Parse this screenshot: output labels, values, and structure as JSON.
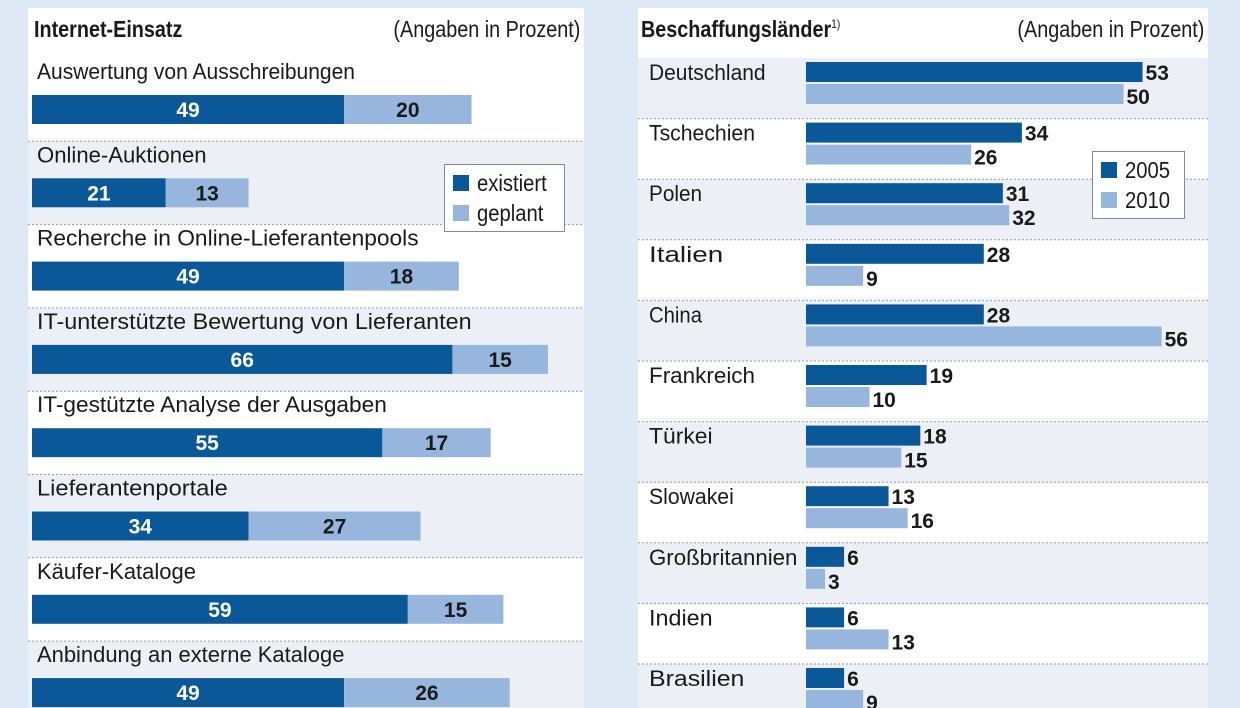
{
  "colors": {
    "existing": "#0a5897",
    "planned": "#97b6de",
    "band": "#ecf0f6",
    "background": "#dfe9f6"
  },
  "left": {
    "title": "Internet-Einsatz",
    "subtitle": "(Angaben in Prozent)",
    "legend": {
      "existing": "existiert",
      "planned": "geplant"
    }
  },
  "right": {
    "title": "Beschaffungsländer",
    "footnote": "1)",
    "subtitle": "(Angaben in Prozent)",
    "legend": {
      "s2005": "2005",
      "s2010": "2010"
    }
  },
  "chart_data": [
    {
      "type": "bar",
      "stacked": true,
      "orientation": "horizontal",
      "title": "Internet-Einsatz",
      "subtitle": "(Angaben in Prozent)",
      "categories": [
        "Auswertung von Ausschreibungen",
        "Online-Auktionen",
        "Recherche in Online-Lieferantenpools",
        "IT-unterstützte Bewertung von Lieferanten",
        "IT-gestützte Analyse der Ausgaben",
        "Lieferantenportale",
        "Käufer-Kataloge",
        "Anbindung an externe Kataloge"
      ],
      "series": [
        {
          "name": "existiert",
          "values": [
            49,
            21,
            49,
            66,
            55,
            34,
            59,
            49
          ]
        },
        {
          "name": "geplant",
          "values": [
            20,
            13,
            18,
            15,
            17,
            27,
            15,
            26
          ]
        }
      ],
      "legend_position": "right"
    },
    {
      "type": "bar",
      "orientation": "horizontal",
      "title": "Beschaffungsländer",
      "subtitle": "(Angaben in Prozent)",
      "categories": [
        "Deutschland",
        "Tschechien",
        "Polen",
        "Italien",
        "China",
        "Frankreich",
        "Türkei",
        "Slowakei",
        "Großbritannien",
        "Indien",
        "Brasilien"
      ],
      "series": [
        {
          "name": "2005",
          "values": [
            53,
            34,
            31,
            28,
            28,
            19,
            18,
            13,
            6,
            6,
            6
          ]
        },
        {
          "name": "2010",
          "values": [
            50,
            26,
            32,
            9,
            56,
            10,
            15,
            16,
            3,
            13,
            9
          ]
        }
      ],
      "legend_position": "top-right"
    }
  ]
}
